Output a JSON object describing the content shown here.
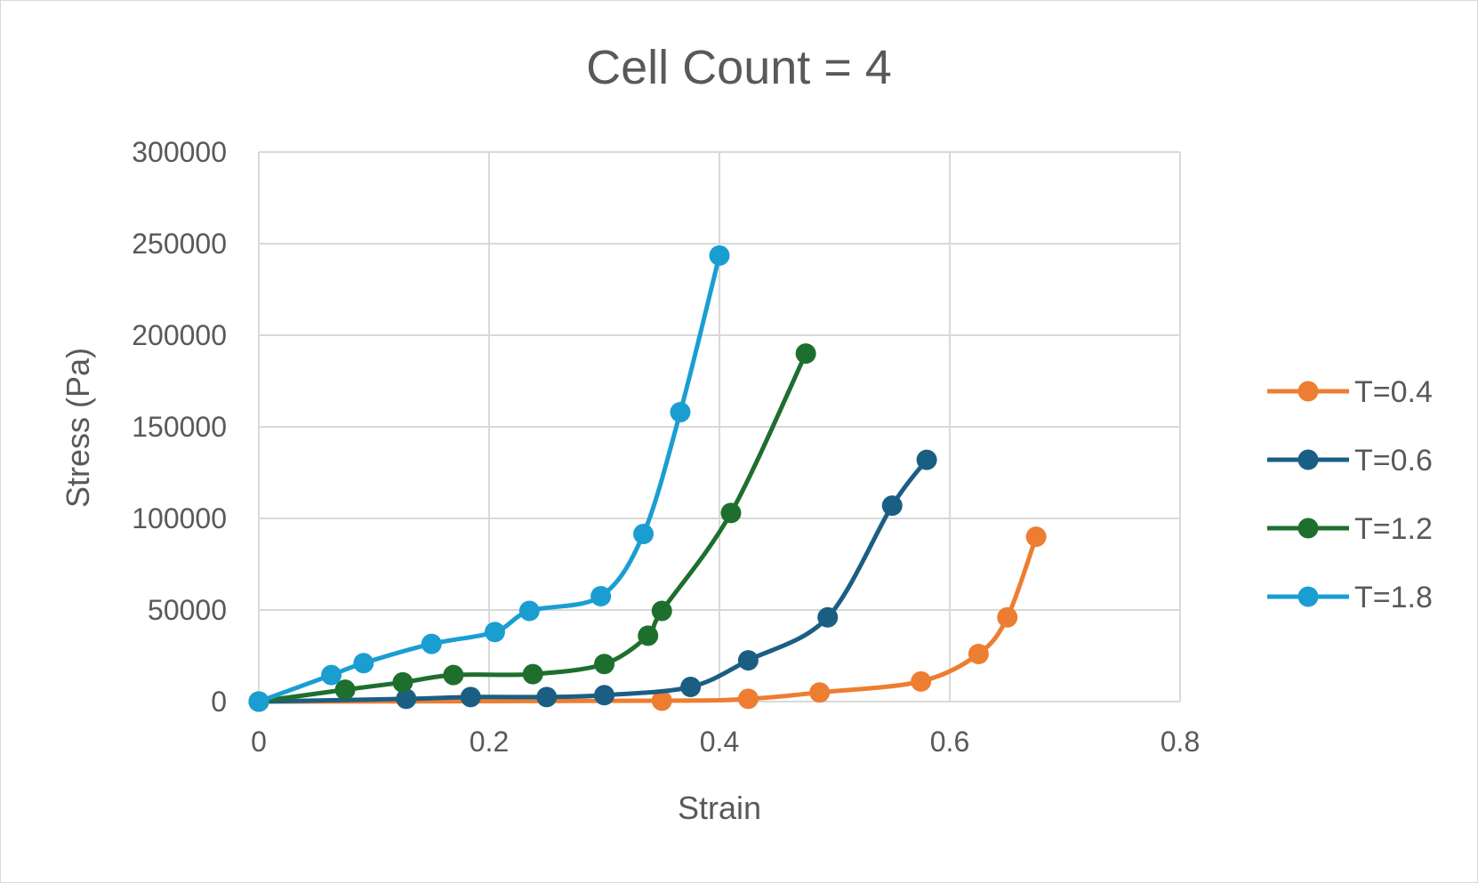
{
  "chart_data": {
    "type": "line",
    "title": "Cell Count = 4",
    "xlabel": "Strain",
    "ylabel": "Stress (Pa)",
    "xlim": [
      0,
      0.8
    ],
    "ylim": [
      0,
      300000
    ],
    "x_ticks": [
      "0",
      "0.2",
      "0.4",
      "0.6",
      "0.8"
    ],
    "y_ticks": [
      "0",
      "50000",
      "100000",
      "150000",
      "200000",
      "250000",
      "300000"
    ],
    "grid": true,
    "smooth": true,
    "legend_position": "right",
    "series": [
      {
        "name": "T=0.4",
        "color": "#ED7D31",
        "points": [
          [
            0,
            0
          ],
          [
            0.35,
            500
          ],
          [
            0.425,
            1500
          ],
          [
            0.487,
            5000
          ],
          [
            0.575,
            11000
          ],
          [
            0.625,
            26000
          ],
          [
            0.65,
            46000
          ],
          [
            0.675,
            90000
          ]
        ]
      },
      {
        "name": "T=0.6",
        "color": "#1B5E84",
        "points": [
          [
            0,
            0
          ],
          [
            0.128,
            1500
          ],
          [
            0.184,
            2500
          ],
          [
            0.25,
            2500
          ],
          [
            0.3,
            3500
          ],
          [
            0.375,
            8000
          ],
          [
            0.425,
            22500
          ],
          [
            0.494,
            46000
          ],
          [
            0.55,
            107000
          ],
          [
            0.58,
            132000
          ]
        ]
      },
      {
        "name": "T=1.2",
        "color": "#1E6F2E",
        "points": [
          [
            0,
            0
          ],
          [
            0.075,
            6500
          ],
          [
            0.125,
            10500
          ],
          [
            0.169,
            14500
          ],
          [
            0.238,
            15000
          ],
          [
            0.3,
            20500
          ],
          [
            0.338,
            36000
          ],
          [
            0.35,
            49500
          ],
          [
            0.41,
            103000
          ],
          [
            0.475,
            190000
          ]
        ]
      },
      {
        "name": "T=1.8",
        "color": "#1A9ED2",
        "points": [
          [
            0,
            0
          ],
          [
            0.063,
            14500
          ],
          [
            0.091,
            21000
          ],
          [
            0.15,
            31500
          ],
          [
            0.205,
            38000
          ],
          [
            0.235,
            49500
          ],
          [
            0.297,
            57500
          ],
          [
            0.334,
            91500
          ],
          [
            0.366,
            158000
          ],
          [
            0.4,
            243500
          ]
        ]
      }
    ]
  }
}
